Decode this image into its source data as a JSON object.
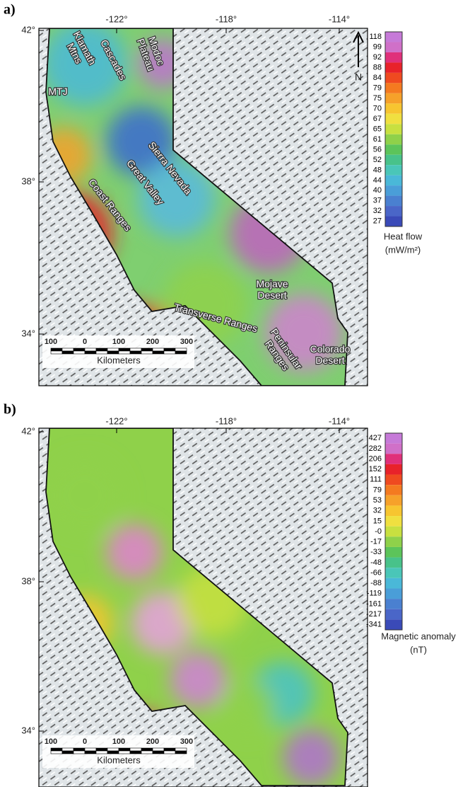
{
  "panels": [
    {
      "label": "a)",
      "lon_labels": [
        "-122°",
        "-118°",
        "-114°"
      ],
      "lat_labels": [
        "42°",
        "38°",
        "34°"
      ],
      "map_labels": [
        {
          "lines": [
            "Klamath",
            "Mtns"
          ]
        },
        {
          "lines": [
            "MTJ"
          ]
        },
        {
          "lines": [
            "Cascades"
          ]
        },
        {
          "lines": [
            "Modoc",
            "Plateau"
          ]
        },
        {
          "lines": [
            "Sierra Nevada"
          ]
        },
        {
          "lines": [
            "Great Valley"
          ]
        },
        {
          "lines": [
            "Coast Ranges"
          ]
        },
        {
          "lines": [
            "Mojave",
            "Desert"
          ]
        },
        {
          "lines": [
            "Transverse Ranges"
          ]
        },
        {
          "lines": [
            "Peninsular",
            "Ranges"
          ]
        },
        {
          "lines": [
            "Colorado",
            "Desert"
          ]
        }
      ],
      "north": "N",
      "scale": {
        "ticks": [
          "100",
          "0",
          "100",
          "200",
          "300"
        ],
        "unit": "Kilometers"
      },
      "colorbar": {
        "labels": [
          "118",
          "99",
          "92",
          "88",
          "84",
          "79",
          "75",
          "70",
          "67",
          "65",
          "61",
          "56",
          "52",
          "48",
          "44",
          "40",
          "37",
          "32",
          "27"
        ],
        "title": [
          "Heat flow",
          "(mW/m²)"
        ]
      }
    },
    {
      "label": "b)",
      "lon_labels": [
        "-122°",
        "-118°",
        "-114°"
      ],
      "lat_labels": [
        "42°",
        "38°",
        "34°"
      ],
      "scale": {
        "ticks": [
          "100",
          "0",
          "100",
          "200",
          "300"
        ],
        "unit": "Kilometers"
      },
      "colorbar": {
        "labels": [
          "427",
          "282",
          "206",
          "152",
          "111",
          "79",
          "53",
          "32",
          "15",
          "-0",
          "-17",
          "-33",
          "-48",
          "-66",
          "-88",
          "-119",
          "-161",
          "-217",
          "-341"
        ],
        "title": [
          "Magnetic anomaly",
          "(nT)"
        ]
      }
    }
  ]
}
